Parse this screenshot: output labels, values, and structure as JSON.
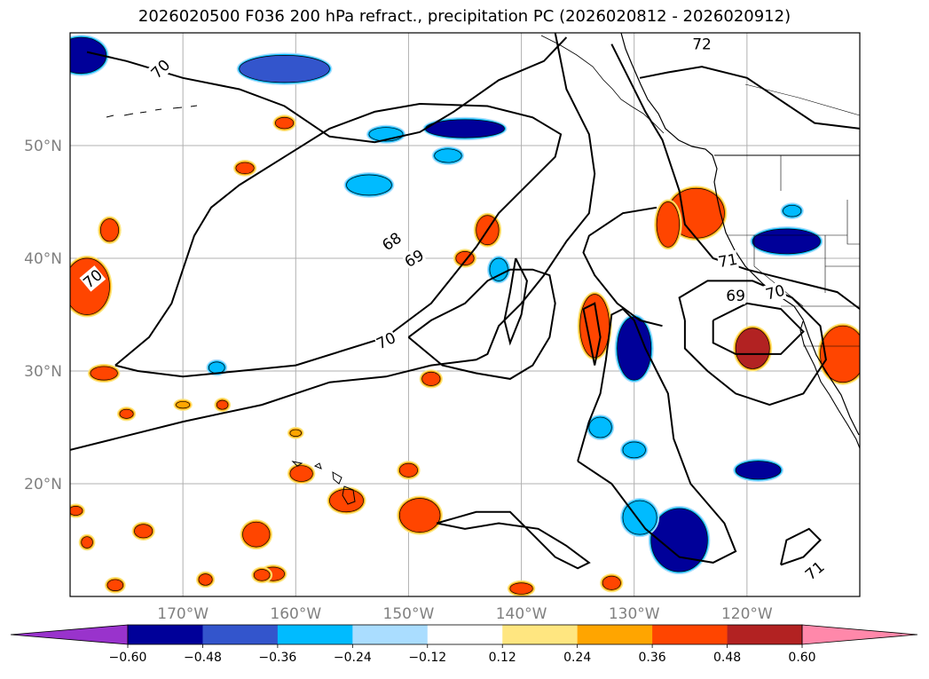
{
  "chart_data": {
    "type": "heatmap",
    "title": "2026020500 F036 200 hPa refract., precipitation PC (2026020812 - 2026020912)",
    "map_extent": {
      "lon": [
        -180,
        -110
      ],
      "lat": [
        10,
        60
      ]
    },
    "lat_ticks": [
      {
        "value": 20,
        "label": "20°N"
      },
      {
        "value": 30,
        "label": "30°N"
      },
      {
        "value": 40,
        "label": "40°N"
      },
      {
        "value": 50,
        "label": "50°N"
      }
    ],
    "lon_ticks": [
      {
        "value": -170,
        "label": "170°W"
      },
      {
        "value": -160,
        "label": "160°W"
      },
      {
        "value": -150,
        "label": "150°W"
      },
      {
        "value": -140,
        "label": "140°W"
      },
      {
        "value": -130,
        "label": "130°W"
      },
      {
        "value": -120,
        "label": "120°W"
      }
    ],
    "grid": true,
    "contour_levels": [
      68,
      69,
      70,
      71,
      72
    ],
    "contour_labels": [
      {
        "text": "68",
        "lon": -151.5,
        "lat": 41.5,
        "angle": -35
      },
      {
        "text": "69",
        "lon": -149.5,
        "lat": 40.0,
        "angle": -30
      },
      {
        "text": "70",
        "lon": -152.0,
        "lat": 32.7,
        "angle": -25
      },
      {
        "text": "70",
        "lon": -178.0,
        "lat": 38.2,
        "angle": -40
      },
      {
        "text": "70",
        "lon": -172.0,
        "lat": 56.8,
        "angle": -45
      },
      {
        "text": "72",
        "lon": -124.0,
        "lat": 59.0,
        "angle": 0
      },
      {
        "text": "71",
        "lon": -121.7,
        "lat": 39.8,
        "angle": -10
      },
      {
        "text": "70",
        "lon": -117.5,
        "lat": 37.0,
        "angle": -15
      },
      {
        "text": "69",
        "lon": -121.0,
        "lat": 36.7,
        "angle": 0
      },
      {
        "text": "71",
        "lon": -114.0,
        "lat": 12.3,
        "angle": -40
      }
    ],
    "colorbar": {
      "bounds": [
        -0.6,
        -0.48,
        -0.36,
        -0.24,
        -0.12,
        0.12,
        0.24,
        0.36,
        0.48,
        0.6
      ],
      "labels": [
        "−0.60",
        "−0.48",
        "−0.36",
        "−0.24",
        "−0.12",
        "0.12",
        "0.24",
        "0.36",
        "0.48",
        "0.60"
      ],
      "colors": [
        "#9933cc",
        "#000099",
        "#3355cc",
        "#00bbff",
        "#aaddff",
        "#ffffff",
        "#ffe680",
        "#ffa500",
        "#ff4500",
        "#b22222",
        "#ff88aa"
      ],
      "extend": "both"
    },
    "precip_patches": [
      {
        "lon": -179.0,
        "lat": 58.0,
        "rx": 2.2,
        "ry": 1.6,
        "value": -0.6
      },
      {
        "lon": -161.0,
        "lat": 56.8,
        "rx": 4.0,
        "ry": 1.2,
        "value": -0.4
      },
      {
        "lon": -145.0,
        "lat": 51.5,
        "rx": 3.5,
        "ry": 0.8,
        "value": -0.5
      },
      {
        "lon": -152.0,
        "lat": 51.0,
        "rx": 1.5,
        "ry": 0.6,
        "value": -0.36
      },
      {
        "lon": -153.5,
        "lat": 46.5,
        "rx": 2.0,
        "ry": 0.9,
        "value": -0.36
      },
      {
        "lon": -146.5,
        "lat": 49.1,
        "rx": 1.2,
        "ry": 0.6,
        "value": -0.36
      },
      {
        "lon": -142.0,
        "lat": 39.0,
        "rx": 0.8,
        "ry": 1.0,
        "value": -0.36
      },
      {
        "lon": -130.0,
        "lat": 32.0,
        "rx": 1.5,
        "ry": 2.8,
        "value": -0.5
      },
      {
        "lon": -126.0,
        "lat": 15.0,
        "rx": 2.5,
        "ry": 2.8,
        "value": -0.5
      },
      {
        "lon": -129.5,
        "lat": 17.0,
        "rx": 1.5,
        "ry": 1.5,
        "value": -0.36
      },
      {
        "lon": -133.0,
        "lat": 25.0,
        "rx": 1.0,
        "ry": 0.9,
        "value": -0.36
      },
      {
        "lon": -130.0,
        "lat": 23.0,
        "rx": 1.0,
        "ry": 0.7,
        "value": -0.36
      },
      {
        "lon": -119.0,
        "lat": 21.2,
        "rx": 2.0,
        "ry": 0.8,
        "value": -0.5
      },
      {
        "lon": -116.5,
        "lat": 41.5,
        "rx": 3.0,
        "ry": 1.1,
        "value": -0.5
      },
      {
        "lon": -116.0,
        "lat": 44.2,
        "rx": 0.8,
        "ry": 0.5,
        "value": -0.36
      },
      {
        "lon": -167.0,
        "lat": 30.3,
        "rx": 0.7,
        "ry": 0.5,
        "value": -0.36
      },
      {
        "lon": -124.5,
        "lat": 44.0,
        "rx": 2.5,
        "ry": 2.2,
        "value": 0.4
      },
      {
        "lon": -127.0,
        "lat": 43.0,
        "rx": 1.0,
        "ry": 2.0,
        "value": 0.4
      },
      {
        "lon": -178.5,
        "lat": 37.5,
        "rx": 2.0,
        "ry": 2.5,
        "value": 0.4
      },
      {
        "lon": -133.5,
        "lat": 34.0,
        "rx": 1.3,
        "ry": 2.8,
        "value": 0.4
      },
      {
        "lon": -119.5,
        "lat": 32.0,
        "rx": 1.5,
        "ry": 1.8,
        "value": 0.5
      },
      {
        "lon": -111.5,
        "lat": 31.5,
        "rx": 2.0,
        "ry": 2.5,
        "value": 0.4
      },
      {
        "lon": -161.0,
        "lat": 52.0,
        "rx": 0.8,
        "ry": 0.5,
        "value": 0.36
      },
      {
        "lon": -164.5,
        "lat": 48.0,
        "rx": 0.8,
        "ry": 0.5,
        "value": 0.36
      },
      {
        "lon": -143.0,
        "lat": 42.5,
        "rx": 1.0,
        "ry": 1.3,
        "value": 0.36
      },
      {
        "lon": -145.0,
        "lat": 40.0,
        "rx": 0.8,
        "ry": 0.6,
        "value": 0.36
      },
      {
        "lon": -176.5,
        "lat": 42.5,
        "rx": 0.8,
        "ry": 1.0,
        "value": 0.36
      },
      {
        "lon": -149.0,
        "lat": 17.2,
        "rx": 1.8,
        "ry": 1.5,
        "value": 0.4
      },
      {
        "lon": -163.5,
        "lat": 15.5,
        "rx": 1.2,
        "ry": 1.1,
        "value": 0.36
      },
      {
        "lon": -155.5,
        "lat": 18.5,
        "rx": 1.5,
        "ry": 1.0,
        "value": 0.36
      },
      {
        "lon": -159.5,
        "lat": 20.9,
        "rx": 1.0,
        "ry": 0.7,
        "value": 0.36
      },
      {
        "lon": -150.0,
        "lat": 21.2,
        "rx": 0.8,
        "ry": 0.6,
        "value": 0.36
      },
      {
        "lon": -162.0,
        "lat": 12.0,
        "rx": 1.0,
        "ry": 0.6,
        "value": 0.36
      },
      {
        "lon": -173.5,
        "lat": 15.8,
        "rx": 0.8,
        "ry": 0.6,
        "value": 0.36
      },
      {
        "lon": -148.0,
        "lat": 29.3,
        "rx": 0.8,
        "ry": 0.6,
        "value": 0.36
      },
      {
        "lon": -177.0,
        "lat": 29.8,
        "rx": 1.2,
        "ry": 0.6,
        "value": 0.36
      },
      {
        "lon": -140.0,
        "lat": 10.7,
        "rx": 1.0,
        "ry": 0.5,
        "value": 0.36
      },
      {
        "lon": -132.0,
        "lat": 11.2,
        "rx": 0.8,
        "ry": 0.6,
        "value": 0.36
      },
      {
        "lon": -178.5,
        "lat": 14.8,
        "rx": 0.5,
        "ry": 0.5,
        "value": 0.36
      },
      {
        "lon": -179.5,
        "lat": 17.6,
        "rx": 0.6,
        "ry": 0.4,
        "value": 0.36
      },
      {
        "lon": -176.0,
        "lat": 11.0,
        "rx": 0.7,
        "ry": 0.5,
        "value": 0.36
      },
      {
        "lon": -168.0,
        "lat": 11.5,
        "rx": 0.6,
        "ry": 0.5,
        "value": 0.36
      },
      {
        "lon": -163.0,
        "lat": 11.9,
        "rx": 0.7,
        "ry": 0.5,
        "value": 0.36
      },
      {
        "lon": -166.5,
        "lat": 27.0,
        "rx": 0.5,
        "ry": 0.4,
        "value": 0.36
      },
      {
        "lon": -175.0,
        "lat": 26.2,
        "rx": 0.6,
        "ry": 0.4,
        "value": 0.36
      },
      {
        "lon": -170.0,
        "lat": 27.0,
        "rx": 0.6,
        "ry": 0.3,
        "value": 0.24
      },
      {
        "lon": -160.0,
        "lat": 24.5,
        "rx": 0.5,
        "ry": 0.3,
        "value": 0.24
      }
    ],
    "contour_paths_lonlat": [
      [
        [
          -176,
          30.5
        ],
        [
          -174,
          30
        ],
        [
          -170,
          29.5
        ],
        [
          -165,
          30
        ],
        [
          -160,
          30.5
        ],
        [
          -152,
          33
        ],
        [
          -148,
          36
        ],
        [
          -146,
          38.5
        ],
        [
          -144,
          41
        ],
        [
          -142,
          44
        ],
        [
          -139,
          47
        ],
        [
          -137,
          49
        ],
        [
          -136.5,
          51
        ],
        [
          -139,
          52.5
        ],
        [
          -143,
          53.5
        ],
        [
          -149,
          53.7
        ],
        [
          -153,
          53
        ],
        [
          -157,
          51.5
        ],
        [
          -161,
          49
        ],
        [
          -165,
          46.5
        ],
        [
          -167.5,
          44.5
        ],
        [
          -169,
          42
        ],
        [
          -170,
          39
        ],
        [
          -171,
          36
        ],
        [
          -173,
          33
        ],
        [
          -176,
          30.5
        ]
      ],
      [
        [
          -178.5,
          58.3
        ],
        [
          -175,
          57.5
        ],
        [
          -170,
          56
        ],
        [
          -165,
          55
        ],
        [
          -161,
          53.5
        ],
        [
          -157,
          50.8
        ],
        [
          -153,
          50.3
        ],
        [
          -149,
          51.2
        ],
        [
          -146,
          53
        ],
        [
          -142,
          55.8
        ],
        [
          -138,
          57.5
        ],
        [
          -136,
          59.6
        ]
      ],
      [
        [
          -180,
          23
        ],
        [
          -176,
          24
        ],
        [
          -170,
          25.5
        ],
        [
          -163,
          27
        ],
        [
          -157,
          29
        ],
        [
          -152,
          29.5
        ],
        [
          -148,
          30.5
        ],
        [
          -144,
          31
        ],
        [
          -143,
          31.5
        ],
        [
          -142,
          34
        ],
        [
          -140,
          36
        ],
        [
          -138,
          38.5
        ],
        [
          -136,
          41.5
        ],
        [
          -134,
          44
        ],
        [
          -133.5,
          47.5
        ],
        [
          -134,
          51
        ],
        [
          -136,
          55
        ],
        [
          -137,
          60
        ]
      ],
      [
        [
          -132,
          59
        ],
        [
          -130.5,
          56
        ],
        [
          -129,
          53
        ],
        [
          -127.5,
          50.5
        ],
        [
          -126,
          46
        ],
        [
          -125.5,
          43
        ],
        [
          -123,
          40
        ],
        [
          -120,
          39
        ],
        [
          -116,
          38
        ],
        [
          -112,
          37
        ],
        [
          -110,
          35.5
        ]
      ],
      [
        [
          -123,
          34.5
        ],
        [
          -120,
          36
        ],
        [
          -117,
          35.5
        ],
        [
          -115,
          33.5
        ],
        [
          -117,
          31.5
        ],
        [
          -121,
          31.5
        ],
        [
          -123,
          32.5
        ],
        [
          -123,
          34.5
        ]
      ],
      [
        [
          -125.5,
          34.5
        ],
        [
          -126,
          36.5
        ],
        [
          -123.5,
          38
        ],
        [
          -119.5,
          38
        ],
        [
          -116,
          36.5
        ],
        [
          -113.5,
          34
        ],
        [
          -113,
          31
        ],
        [
          -115,
          28
        ],
        [
          -118,
          27
        ],
        [
          -121,
          28
        ],
        [
          -123.5,
          30
        ],
        [
          -125.5,
          32
        ],
        [
          -125.5,
          34.5
        ]
      ],
      [
        [
          -135,
          22
        ],
        [
          -132,
          20
        ],
        [
          -129,
          16
        ],
        [
          -126,
          13.5
        ],
        [
          -123,
          13
        ],
        [
          -121,
          14
        ],
        [
          -122,
          16.5
        ],
        [
          -125,
          20
        ],
        [
          -126.5,
          24
        ],
        [
          -127,
          28
        ],
        [
          -128,
          30
        ],
        [
          -129,
          32
        ],
        [
          -130,
          34.5
        ],
        [
          -131,
          35.5
        ],
        [
          -132,
          35
        ],
        [
          -132.5,
          31
        ],
        [
          -133,
          28
        ],
        [
          -134,
          25.5
        ],
        [
          -135,
          22
        ]
      ],
      [
        [
          -117,
          12.8
        ],
        [
          -115,
          13.5
        ],
        [
          -113.5,
          15
        ],
        [
          -114.5,
          16
        ],
        [
          -116.5,
          15
        ],
        [
          -117,
          12.8
        ]
      ],
      [
        [
          -127.5,
          34
        ],
        [
          -129.5,
          34.5
        ],
        [
          -131.5,
          36
        ],
        [
          -133.5,
          38.5
        ],
        [
          -134.5,
          40.5
        ],
        [
          -134,
          42
        ],
        [
          -131,
          44
        ],
        [
          -128,
          44.5
        ]
      ],
      [
        [
          -150,
          33
        ],
        [
          -147,
          30.5
        ],
        [
          -144,
          29.8
        ],
        [
          -141,
          29.3
        ],
        [
          -139,
          30.5
        ],
        [
          -137.5,
          33
        ],
        [
          -137,
          36
        ],
        [
          -137.5,
          38.5
        ],
        [
          -139,
          39
        ],
        [
          -141,
          39
        ],
        [
          -143,
          38
        ],
        [
          -145,
          36
        ],
        [
          -148,
          34.5
        ],
        [
          -150,
          33
        ]
      ],
      [
        [
          -140.5,
          40
        ],
        [
          -141,
          37
        ],
        [
          -141.5,
          34.5
        ],
        [
          -141,
          32.5
        ],
        [
          -140,
          35
        ],
        [
          -139.5,
          38
        ],
        [
          -140.5,
          40
        ]
      ],
      [
        [
          -147.5,
          16.5
        ],
        [
          -144,
          17.5
        ],
        [
          -141,
          17.5
        ],
        [
          -139,
          15.5
        ],
        [
          -137,
          13.5
        ],
        [
          -135,
          12.5
        ],
        [
          -134,
          13
        ],
        [
          -136,
          14.5
        ],
        [
          -138.5,
          16
        ],
        [
          -142,
          16.5
        ],
        [
          -145,
          16
        ],
        [
          -147.5,
          16.5
        ]
      ],
      [
        [
          -129.5,
          56
        ],
        [
          -127,
          56.5
        ],
        [
          -124,
          57
        ],
        [
          -120,
          56
        ],
        [
          -117,
          54
        ],
        [
          -114,
          52
        ],
        [
          -110,
          51.5
        ]
      ],
      [
        [
          -134.5,
          35.5
        ],
        [
          -133.5,
          36
        ],
        [
          -133,
          33
        ],
        [
          -133.5,
          30.5
        ],
        [
          -134.5,
          35.5
        ]
      ]
    ]
  }
}
